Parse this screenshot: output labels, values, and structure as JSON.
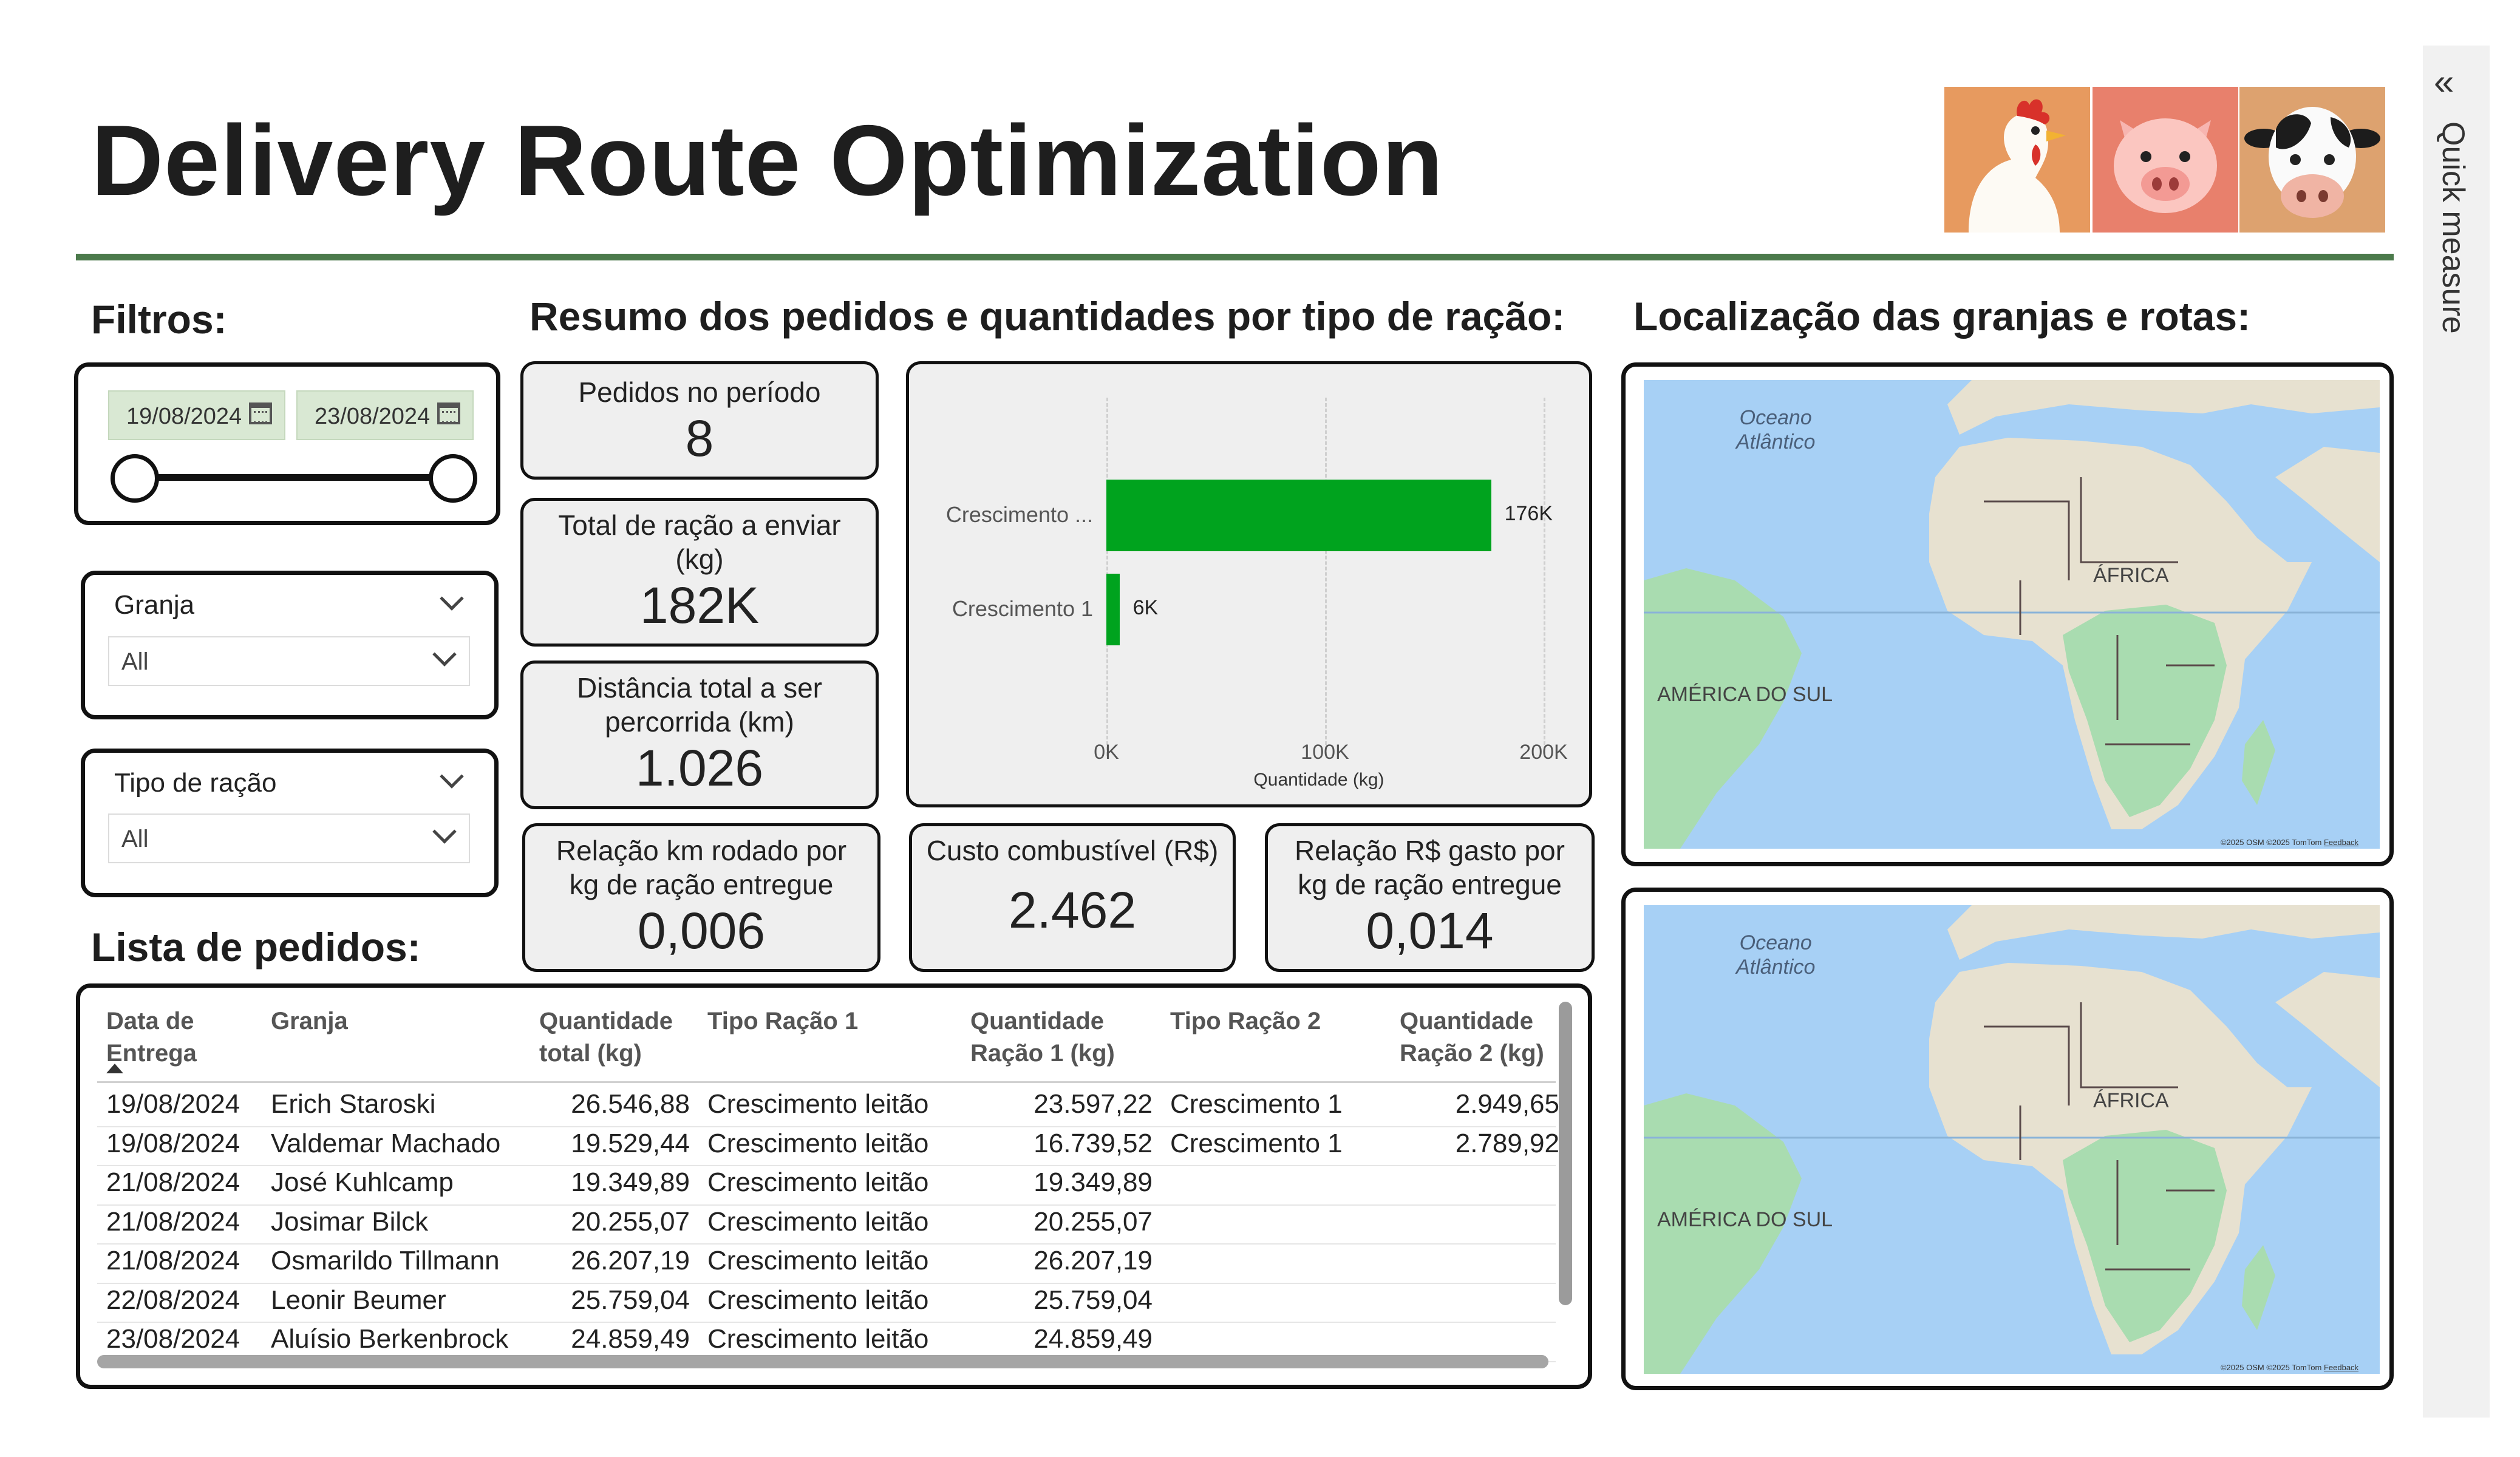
{
  "title": "Delivery Route Optimization",
  "animals": [
    "chicken-icon",
    "pig-icon",
    "cow-icon"
  ],
  "quick_measure": "Quick measure",
  "filters": {
    "heading": "Filtros:",
    "date_start": "19/08/2024",
    "date_end": "23/08/2024",
    "granja_label": "Granja",
    "granja_value": "All",
    "tipo_label": "Tipo de ração",
    "tipo_value": "All"
  },
  "summary": {
    "heading": "Resumo dos pedidos e quantidades por tipo de ração:",
    "kpis": {
      "pedidos": {
        "label": "Pedidos no período",
        "value": "8"
      },
      "total_racao": {
        "label1": "Total de ração a enviar",
        "label2": "(kg)",
        "value": "182K"
      },
      "distancia": {
        "label1": "Distância total a ser",
        "label2": "percorrida (km)",
        "value": "1.026"
      },
      "km_por_kg": {
        "label1": "Relação km rodado por",
        "label2": "kg de ração entregue",
        "value": "0,006"
      },
      "custo": {
        "label": "Custo combustível (R$)",
        "value": "2.462"
      },
      "rs_por_kg": {
        "label1": "Relação R$ gasto por",
        "label2": "kg de ração entregue",
        "value": "0,014"
      }
    }
  },
  "chart_data": {
    "type": "bar",
    "orientation": "horizontal",
    "categories": [
      "Crescimento ...",
      "Crescimento 1"
    ],
    "values": [
      176000,
      6000
    ],
    "data_labels": [
      "176K",
      "6K"
    ],
    "xlim": [
      0,
      200000
    ],
    "xticks": [
      0,
      100000,
      200000
    ],
    "xtick_labels": [
      "0K",
      "100K",
      "200K"
    ],
    "xlabel": "Quantidade (kg)",
    "bar_color": "#00a31e",
    "grid": true
  },
  "orders": {
    "heading": "Lista de pedidos:",
    "columns": {
      "data": [
        "Data de",
        "Entrega"
      ],
      "granja": [
        "Granja"
      ],
      "qtd_total": [
        "Quantidade",
        "total (kg)"
      ],
      "tipo1": [
        "Tipo Ração 1"
      ],
      "qtd1": [
        "Quantidade",
        "Ração 1 (kg)"
      ],
      "tipo2": [
        "Tipo Ração 2"
      ],
      "qtd2": [
        "Quantidade",
        "Ração 2 (kg)"
      ]
    },
    "rows": [
      [
        "19/08/2024",
        "Erich Staroski",
        "26.546,88",
        "Crescimento leitão",
        "23.597,22",
        "Crescimento 1",
        "2.949,65"
      ],
      [
        "19/08/2024",
        "Valdemar Machado",
        "19.529,44",
        "Crescimento leitão",
        "16.739,52",
        "Crescimento 1",
        "2.789,92"
      ],
      [
        "21/08/2024",
        "José Kuhlcamp",
        "19.349,89",
        "Crescimento leitão",
        "19.349,89",
        "",
        ""
      ],
      [
        "21/08/2024",
        "Josimar Bilck",
        "20.255,07",
        "Crescimento leitão",
        "20.255,07",
        "",
        ""
      ],
      [
        "21/08/2024",
        "Osmarildo Tillmann",
        "26.207,19",
        "Crescimento leitão",
        "26.207,19",
        "",
        ""
      ],
      [
        "22/08/2024",
        "Leonir Beumer",
        "25.759,04",
        "Crescimento leitão",
        "25.759,04",
        "",
        ""
      ],
      [
        "23/08/2024",
        "Aluísio Berkenbrock",
        "24.859,49",
        "Crescimento leitão",
        "24.859,49",
        "",
        ""
      ]
    ]
  },
  "maps": {
    "heading": "Localização das granjas e rotas:",
    "ocean_label1": "Oceano",
    "ocean_label2": "Atlântico",
    "africa_label": "ÁFRICA",
    "south_america_label": "AMÉRICA DO SUL",
    "credit": "©2025 OSM ©2025 TomTom",
    "feedback": "Feedback"
  }
}
